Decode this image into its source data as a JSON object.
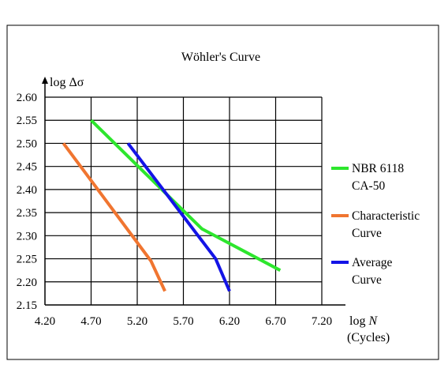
{
  "chart_data": {
    "type": "line",
    "title": "Wöhler's Curve",
    "ylabel_prefix": "log ",
    "ylabel_symbol": "Δσ",
    "xlabel_prefix": "log ",
    "xlabel_symbol": "N",
    "xlabel_unit": "(Cycles)",
    "xlim": [
      4.2,
      7.2
    ],
    "ylim": [
      2.15,
      2.6
    ],
    "grid": true,
    "legend_position": "right",
    "x_ticks": [
      "4.20",
      "4.70",
      "5.20",
      "5.70",
      "6.20",
      "6.70",
      "7.20"
    ],
    "y_ticks": [
      "2.60",
      "2.55",
      "2.50",
      "2.45",
      "2.40",
      "2.35",
      "2.30",
      "2.25",
      "2.20",
      "2.15"
    ],
    "series": [
      {
        "name_line1": "NBR 6118",
        "name_line2": "CA-50",
        "color": "#2de62d",
        "points": [
          [
            4.7,
            2.55
          ],
          [
            5.9,
            2.315
          ],
          [
            6.75,
            2.225
          ]
        ]
      },
      {
        "name_line1": "Characteristic",
        "name_line2": "Curve",
        "color": "#f07530",
        "points": [
          [
            4.4,
            2.5
          ],
          [
            5.35,
            2.245
          ],
          [
            5.5,
            2.18
          ]
        ]
      },
      {
        "name_line1": "Average",
        "name_line2": "Curve",
        "color": "#1414e6",
        "points": [
          [
            5.1,
            2.5
          ],
          [
            6.05,
            2.25
          ],
          [
            6.2,
            2.18
          ]
        ]
      }
    ]
  }
}
